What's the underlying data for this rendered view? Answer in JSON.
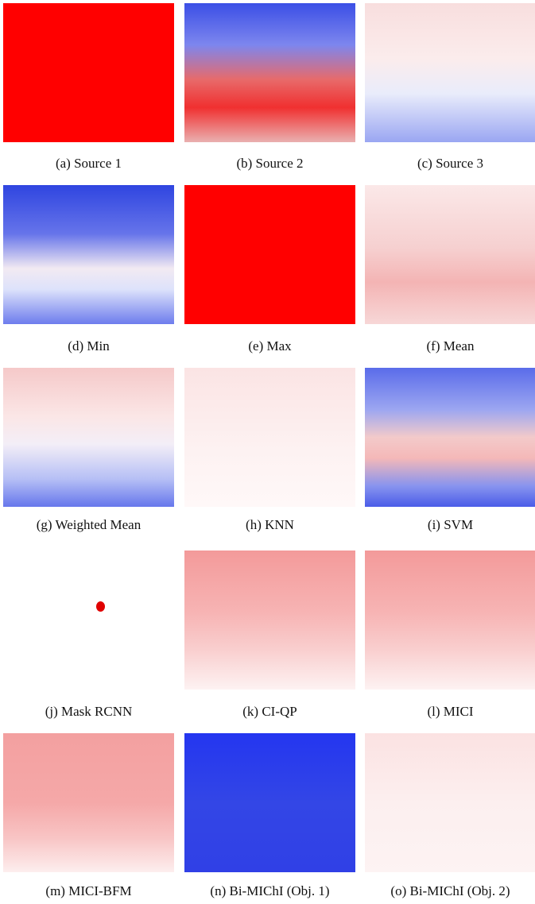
{
  "captions": [
    "(a) Source 1",
    "(b) Source 2",
    "(c) Source 3",
    "(d) Min",
    "(e) Max",
    "(f) Mean",
    "(g) Weighted Mean",
    "(h) KNN",
    "(i) SVM",
    "(j) Mask RCNN",
    "(k) CI-QP",
    "(l) MICI",
    "(m) MICI-BFM",
    "(n) Bi-MIChI (Obj. 1)",
    "(o) Bi-MIChI (Obj. 2)"
  ]
}
